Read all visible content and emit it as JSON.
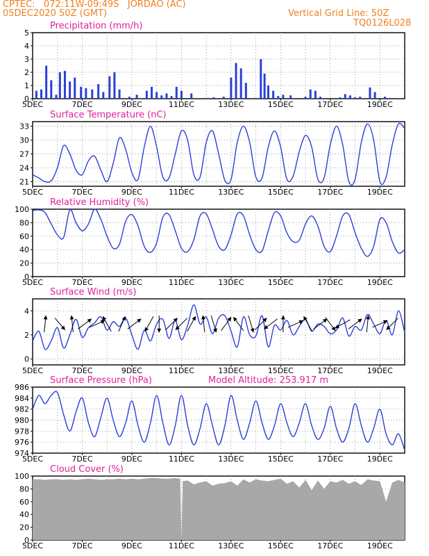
{
  "header": {
    "line1": "CPTEC:   072:11W-09:49S   JORDAO (AC)",
    "line2": "05DEC2020 50Z (GMT)",
    "grid_note": "Vertical Grid Line: 50Z",
    "code": "TQ0126L028",
    "altitude": "Model Altitude: 253.917 m"
  },
  "colors": {
    "header": "#f08020",
    "panel_title": "#e0209a",
    "line": "#2a3fd6",
    "bar": "#2a3fd6",
    "cloud": "#a8a8a8",
    "axis": "#000000",
    "grid": "#777777"
  },
  "x_axis": {
    "range_days": [
      5,
      20
    ],
    "ticks": [
      5,
      7,
      9,
      11,
      13,
      15,
      17,
      19
    ],
    "tick_labels": [
      "5DEC",
      "7DEC",
      "9DEC",
      "11DEC",
      "13DEC",
      "15DEC",
      "17DEC",
      "19DEC"
    ]
  },
  "chart_data": [
    {
      "type": "bar",
      "title": "Precipitation (mm/h)",
      "ylim": [
        0,
        5
      ],
      "yticks": [
        0,
        1,
        2,
        3,
        4,
        5
      ],
      "x": [
        5.15,
        5.35,
        5.55,
        5.75,
        5.95,
        6.1,
        6.3,
        6.5,
        6.7,
        6.95,
        7.15,
        7.4,
        7.65,
        7.85,
        8.1,
        8.3,
        8.5,
        8.9,
        9.2,
        9.6,
        9.8,
        10.0,
        10.2,
        10.4,
        10.6,
        10.8,
        11.0,
        11.4,
        12.3,
        12.7,
        13.0,
        13.2,
        13.4,
        13.6,
        14.2,
        14.35,
        14.5,
        14.7,
        14.9,
        15.1,
        15.4,
        16.0,
        16.2,
        16.4,
        16.6,
        17.4,
        17.6,
        17.8,
        18.0,
        18.2,
        18.6,
        18.8,
        19.2,
        19.6
      ],
      "values": [
        0.6,
        0.7,
        2.5,
        1.4,
        0.3,
        2.0,
        2.1,
        1.3,
        1.6,
        0.9,
        0.8,
        0.7,
        1.1,
        0.5,
        1.7,
        2.0,
        0.7,
        0.15,
        0.3,
        0.6,
        0.9,
        0.5,
        0.25,
        0.4,
        0.2,
        0.9,
        0.6,
        0.4,
        0.1,
        0.15,
        1.6,
        2.7,
        2.3,
        1.2,
        3.0,
        1.9,
        1.0,
        0.6,
        0.2,
        0.3,
        0.25,
        0.15,
        0.7,
        0.6,
        0.15,
        0.1,
        0.35,
        0.25,
        0.1,
        0.15,
        0.85,
        0.5,
        0.15,
        0.05
      ]
    },
    {
      "type": "line",
      "title": "Surface Temperature (nC)",
      "ylim": [
        20,
        34
      ],
      "yticks": [
        21,
        24,
        27,
        30,
        33
      ],
      "series": [
        {
          "x": [
            5.0,
            5.25,
            5.5,
            5.75,
            6.0,
            6.25,
            6.5,
            6.75,
            7.0,
            7.25,
            7.5,
            7.75,
            8.0,
            8.25,
            8.5,
            8.75,
            9.0,
            9.25,
            9.5,
            9.75,
            10.0,
            10.25,
            10.5,
            10.75,
            11.0,
            11.25,
            11.5,
            11.75,
            12.0,
            12.25,
            12.5,
            12.75,
            13.0,
            13.25,
            13.5,
            13.75,
            14.0,
            14.25,
            14.5,
            14.75,
            15.0,
            15.25,
            15.5,
            15.75,
            16.0,
            16.25,
            16.5,
            16.75,
            17.0,
            17.25,
            17.5,
            17.75,
            18.0,
            18.25,
            18.5,
            18.75,
            19.0,
            19.25,
            19.5,
            19.75,
            20.0
          ],
          "values": [
            22.5,
            21.8,
            21.0,
            21.2,
            24.0,
            28.8,
            27.0,
            23.5,
            22.5,
            25.5,
            26.5,
            23.5,
            21.0,
            25.0,
            30.5,
            28.0,
            23.0,
            21.5,
            28.5,
            33.0,
            28.5,
            22.0,
            21.8,
            27.0,
            32.0,
            30.0,
            22.5,
            22.0,
            29.5,
            32.0,
            27.0,
            21.3,
            21.5,
            29.5,
            33.0,
            29.5,
            22.0,
            21.8,
            28.5,
            32.0,
            28.5,
            21.5,
            22.2,
            27.5,
            31.0,
            28.5,
            21.5,
            21.8,
            29.0,
            33.0,
            29.0,
            21.0,
            21.5,
            29.5,
            33.5,
            30.0,
            21.0,
            22.0,
            29.0,
            33.5,
            32.5
          ]
        }
      ]
    },
    {
      "type": "line",
      "title": "Relative Humidity (%)",
      "ylim": [
        0,
        100
      ],
      "yticks": [
        0,
        20,
        40,
        60,
        80,
        100
      ],
      "series": [
        {
          "x": [
            5.0,
            5.25,
            5.5,
            5.75,
            6.0,
            6.25,
            6.5,
            6.75,
            7.0,
            7.25,
            7.5,
            7.75,
            8.0,
            8.25,
            8.5,
            8.75,
            9.0,
            9.25,
            9.5,
            9.75,
            10.0,
            10.25,
            10.5,
            10.75,
            11.0,
            11.25,
            11.5,
            11.75,
            12.0,
            12.25,
            12.5,
            12.75,
            13.0,
            13.25,
            13.5,
            13.75,
            14.0,
            14.25,
            14.5,
            14.75,
            15.0,
            15.25,
            15.5,
            15.75,
            16.0,
            16.25,
            16.5,
            16.75,
            17.0,
            17.25,
            17.5,
            17.75,
            18.0,
            18.25,
            18.5,
            18.75,
            19.0,
            19.25,
            19.5,
            19.75,
            20.0
          ],
          "values": [
            98.0,
            99.0,
            95.0,
            78.0,
            62.0,
            58.0,
            99.0,
            80.0,
            68.0,
            78.0,
            100.0,
            85.0,
            60.0,
            42.0,
            48.0,
            82.0,
            92.0,
            75.0,
            45.0,
            36.0,
            50.0,
            88.0,
            92.0,
            68.0,
            42.0,
            37.0,
            55.0,
            90.0,
            93.0,
            70.0,
            45.0,
            40.0,
            62.0,
            93.0,
            90.0,
            62.0,
            40.0,
            38.0,
            68.0,
            95.0,
            90.0,
            65.0,
            52.0,
            54.0,
            78.0,
            90.0,
            75.0,
            45.0,
            37.0,
            60.0,
            90.0,
            92.0,
            65.0,
            42.0,
            30.0,
            45.0,
            85.0,
            80.0,
            52.0,
            35.0,
            40.0
          ]
        }
      ]
    },
    {
      "type": "line",
      "title": "Surface Wind (m/s)",
      "ylim": [
        -0.5,
        5
      ],
      "yticks": [
        0,
        2,
        4
      ],
      "series": [
        {
          "x": [
            5.0,
            5.25,
            5.5,
            5.75,
            6.0,
            6.25,
            6.5,
            6.75,
            7.0,
            7.25,
            7.5,
            7.75,
            8.0,
            8.25,
            8.5,
            8.75,
            9.0,
            9.25,
            9.5,
            9.75,
            10.0,
            10.25,
            10.5,
            10.75,
            11.0,
            11.25,
            11.5,
            11.75,
            12.0,
            12.25,
            12.5,
            12.75,
            13.0,
            13.25,
            13.5,
            13.75,
            14.0,
            14.25,
            14.5,
            14.75,
            15.0,
            15.25,
            15.5,
            15.75,
            16.0,
            16.25,
            16.5,
            16.75,
            17.0,
            17.25,
            17.5,
            17.75,
            18.0,
            18.25,
            18.5,
            18.75,
            19.0,
            19.25,
            19.5,
            19.75,
            20.0
          ],
          "values": [
            1.5,
            2.3,
            0.8,
            1.5,
            2.6,
            0.9,
            2.0,
            3.3,
            1.8,
            2.6,
            3.0,
            3.5,
            2.4,
            3.1,
            2.7,
            3.4,
            2.0,
            0.8,
            2.4,
            1.5,
            2.9,
            3.3,
            1.7,
            3.2,
            1.6,
            2.8,
            4.5,
            2.9,
            3.5,
            2.1,
            3.4,
            3.6,
            2.3,
            1.0,
            3.5,
            2.0,
            1.9,
            3.6,
            1.0,
            2.8,
            2.4,
            3.2,
            2.0,
            2.7,
            3.3,
            2.3,
            2.9,
            2.7,
            2.1,
            2.4,
            3.4,
            1.9,
            2.7,
            2.4,
            3.7,
            2.9,
            2.1,
            3.2,
            2.0,
            4.0,
            2.2
          ]
        }
      ],
      "arrows": [
        {
          "x": 5.5,
          "u": 0.1,
          "v": 1.0
        },
        {
          "x": 6.1,
          "u": 0.6,
          "v": -0.7
        },
        {
          "x": 6.6,
          "u": -0.1,
          "v": 1.0
        },
        {
          "x": 7.1,
          "u": 0.8,
          "v": 0.6
        },
        {
          "x": 7.6,
          "u": 0.9,
          "v": 0.4
        },
        {
          "x": 8.0,
          "u": -0.5,
          "v": 0.9
        },
        {
          "x": 8.6,
          "u": 0.4,
          "v": 0.9
        },
        {
          "x": 9.1,
          "u": 0.8,
          "v": 0.6
        },
        {
          "x": 9.7,
          "u": -0.5,
          "v": -0.9
        },
        {
          "x": 10.1,
          "u": 0.0,
          "v": -1.0
        },
        {
          "x": 10.6,
          "u": 0.7,
          "v": 0.7
        },
        {
          "x": 11.0,
          "u": -0.7,
          "v": -0.7
        },
        {
          "x": 11.4,
          "u": 0.5,
          "v": 0.9
        },
        {
          "x": 11.9,
          "u": -0.1,
          "v": 1.0
        },
        {
          "x": 12.3,
          "u": 0.3,
          "v": -1.0
        },
        {
          "x": 12.8,
          "u": 0.6,
          "v": 0.8
        },
        {
          "x": 13.3,
          "u": -0.6,
          "v": 0.8
        },
        {
          "x": 13.8,
          "u": 0.3,
          "v": -1.0
        },
        {
          "x": 14.2,
          "u": 0.7,
          "v": 0.7
        },
        {
          "x": 14.6,
          "u": -0.8,
          "v": -0.6
        },
        {
          "x": 15.1,
          "u": 0.0,
          "v": 1.0
        },
        {
          "x": 15.6,
          "u": 0.9,
          "v": 0.4
        },
        {
          "x": 16.1,
          "u": -0.5,
          "v": 0.9
        },
        {
          "x": 16.6,
          "u": 0.8,
          "v": 0.6
        },
        {
          "x": 17.0,
          "u": 0.6,
          "v": -0.8
        },
        {
          "x": 17.5,
          "u": -0.9,
          "v": -0.5
        },
        {
          "x": 18.0,
          "u": 0.8,
          "v": 0.6
        },
        {
          "x": 18.5,
          "u": 0.1,
          "v": 1.0
        },
        {
          "x": 19.0,
          "u": 0.9,
          "v": 0.4
        },
        {
          "x": 19.5,
          "u": -0.7,
          "v": -0.7
        }
      ]
    },
    {
      "type": "line",
      "title": "Surface Pressure (hPa)",
      "ylim": [
        974,
        986
      ],
      "yticks": [
        974,
        976,
        978,
        980,
        982,
        984,
        986
      ],
      "series": [
        {
          "x": [
            5.0,
            5.25,
            5.5,
            5.75,
            6.0,
            6.25,
            6.5,
            6.75,
            7.0,
            7.25,
            7.5,
            7.75,
            8.0,
            8.25,
            8.5,
            8.75,
            9.0,
            9.25,
            9.5,
            9.75,
            10.0,
            10.25,
            10.5,
            10.75,
            11.0,
            11.25,
            11.5,
            11.75,
            12.0,
            12.25,
            12.5,
            12.75,
            13.0,
            13.25,
            13.5,
            13.75,
            14.0,
            14.25,
            14.5,
            14.75,
            15.0,
            15.25,
            15.5,
            15.75,
            16.0,
            16.25,
            16.5,
            16.75,
            17.0,
            17.25,
            17.5,
            17.75,
            18.0,
            18.25,
            18.5,
            18.75,
            19.0,
            19.25,
            19.5,
            19.75,
            20.0
          ],
          "values": [
            982.0,
            984.5,
            983.0,
            984.5,
            985.0,
            981.0,
            978.0,
            981.5,
            984.0,
            979.5,
            977.0,
            980.5,
            984.0,
            980.0,
            977.0,
            979.5,
            983.5,
            979.0,
            976.0,
            979.5,
            984.5,
            979.5,
            975.5,
            979.0,
            984.5,
            979.0,
            975.5,
            978.5,
            983.0,
            979.0,
            975.5,
            979.0,
            984.5,
            980.0,
            976.5,
            979.5,
            983.5,
            979.5,
            976.5,
            979.0,
            983.0,
            979.5,
            977.0,
            979.5,
            983.0,
            979.0,
            976.5,
            978.5,
            982.5,
            978.5,
            976.0,
            978.5,
            983.0,
            979.0,
            976.0,
            978.5,
            982.0,
            977.5,
            975.5,
            977.5,
            974.5
          ]
        }
      ]
    },
    {
      "type": "area",
      "title": "Cloud Cover (%)",
      "ylim": [
        0,
        100
      ],
      "yticks": [
        0,
        20,
        40,
        60,
        80,
        100
      ],
      "series": [
        {
          "x": [
            5.0,
            5.25,
            5.5,
            5.75,
            6.0,
            6.25,
            6.5,
            6.75,
            7.0,
            7.25,
            7.5,
            7.75,
            8.0,
            8.25,
            8.5,
            8.75,
            9.0,
            9.25,
            9.5,
            9.75,
            10.0,
            10.25,
            10.5,
            10.75,
            10.95,
            11.0,
            11.05,
            11.25,
            11.5,
            11.75,
            12.0,
            12.25,
            12.5,
            12.75,
            13.0,
            13.25,
            13.5,
            13.75,
            14.0,
            14.25,
            14.5,
            14.75,
            15.0,
            15.25,
            15.5,
            15.75,
            16.0,
            16.25,
            16.5,
            16.75,
            17.0,
            17.25,
            17.5,
            17.75,
            18.0,
            18.25,
            18.5,
            18.75,
            19.0,
            19.25,
            19.5,
            19.75,
            20.0
          ],
          "values": [
            95,
            95,
            94,
            95,
            95,
            94,
            95,
            94,
            95,
            96,
            95,
            94,
            95,
            95,
            96,
            95,
            96,
            95,
            96,
            97,
            97,
            96,
            96,
            97,
            96,
            0,
            92,
            93,
            87,
            90,
            92,
            85,
            88,
            89,
            92,
            85,
            95,
            90,
            95,
            93,
            92,
            94,
            96,
            88,
            92,
            82,
            94,
            78,
            93,
            80,
            92,
            90,
            94,
            88,
            92,
            86,
            95,
            93,
            92,
            60,
            90,
            94,
            90
          ]
        }
      ]
    }
  ]
}
